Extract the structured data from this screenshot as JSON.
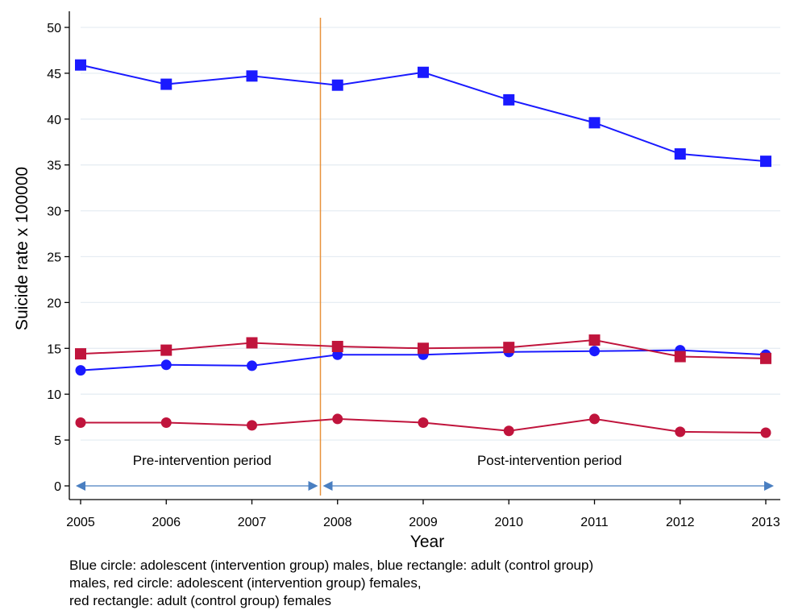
{
  "chart_data": {
    "type": "line",
    "x": [
      2005,
      2006,
      2007,
      2008,
      2009,
      2010,
      2011,
      2012,
      2013
    ],
    "ylim": [
      0,
      50
    ],
    "yticks": [
      0,
      5,
      10,
      15,
      20,
      25,
      30,
      35,
      40,
      45,
      50
    ],
    "xlabel": "Year",
    "ylabel": "Suicide rate x 100000",
    "grid": true,
    "intervention_line_x": 2007.8,
    "periods": [
      {
        "label": "Pre-intervention period",
        "from": 2005,
        "to": 2007.8
      },
      {
        "label": "Post-intervention period",
        "from": 2007.8,
        "to": 2013
      }
    ],
    "series": [
      {
        "marker": "square",
        "color": "#1a1aff",
        "values": [
          45.9,
          43.8,
          44.7,
          43.7,
          45.1,
          42.1,
          39.6,
          36.2,
          35.4
        ]
      },
      {
        "marker": "circle",
        "color": "#1a1aff",
        "values": [
          12.6,
          13.2,
          13.1,
          14.3,
          14.3,
          14.6,
          14.7,
          14.8,
          14.3
        ]
      },
      {
        "marker": "square",
        "color": "#c0143c",
        "values": [
          14.4,
          14.8,
          15.6,
          15.2,
          15.0,
          15.1,
          15.9,
          14.1,
          13.9
        ]
      },
      {
        "marker": "circle",
        "color": "#c0143c",
        "values": [
          6.9,
          6.9,
          6.6,
          7.3,
          6.9,
          6.0,
          7.3,
          5.9,
          5.8
        ]
      }
    ],
    "caption": [
      "Blue circle: adolescent (intervention group) males, blue rectangle: adult (control group)",
      "males, red circle: adolescent (intervention group) females,",
      "red rectangle: adult (control group)  females"
    ]
  },
  "colors": {
    "grid": "#e6edf3",
    "intervention_line": "#e8913c",
    "period_arrow": "#4a7fc1"
  }
}
